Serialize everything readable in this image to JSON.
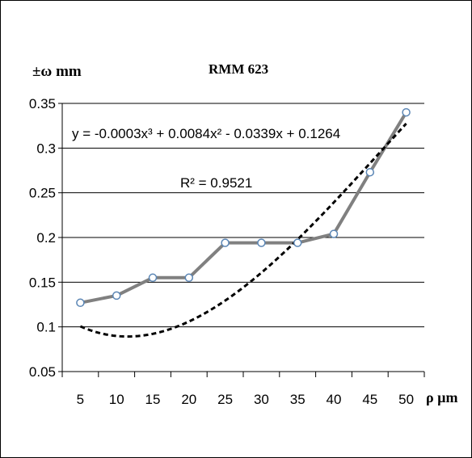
{
  "chart_data": {
    "type": "line",
    "title": "RMM 623",
    "ylabel": "±ω mm",
    "xlabel": "ρ µm",
    "categories": [
      "5",
      "10",
      "15",
      "20",
      "25",
      "30",
      "35",
      "40",
      "45",
      "50"
    ],
    "x": [
      5,
      10,
      15,
      20,
      25,
      30,
      35,
      40,
      45,
      50
    ],
    "series": [
      {
        "values": [
          0.127,
          0.135,
          0.155,
          0.155,
          0.194,
          0.194,
          0.194,
          0.204,
          0.273,
          0.34
        ],
        "color": "#808080",
        "marker": "circle"
      }
    ],
    "trendline": {
      "type": "poly3",
      "equation": "y = -0.0003x³ + 0.0084x² - 0.0339x + 0.1264",
      "r2": "R² = 0.9521",
      "color": "#000000",
      "style": "dashed"
    },
    "ylim": [
      0.05,
      0.35
    ],
    "yticks": [
      "0.35",
      "0.3",
      "0.25",
      "0.2",
      "0.15",
      "0.1",
      "0.05"
    ],
    "grid": "horizontal",
    "legend": "none"
  }
}
